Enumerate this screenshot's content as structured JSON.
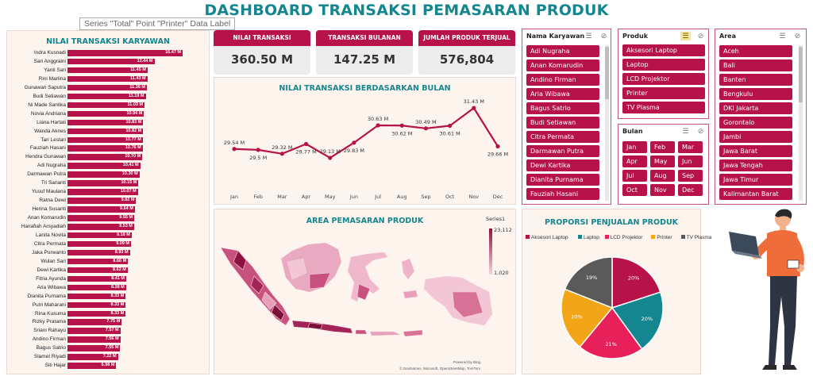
{
  "title": "DASHBOARD TRANSAKSI PEMASARAN PRODUK",
  "tooltip": "Series \"Total\" Point \"Printer\" Data Label",
  "employees_panel": {
    "title": "NILAI TRANSAKSI KARYAWAN",
    "rows": [
      {
        "name": "Indra Kusnadi",
        "value": 16.47,
        "label": "16.47 M"
      },
      {
        "name": "Sari Anggraini",
        "value": 12.44,
        "label": "12.44 M"
      },
      {
        "name": "Yanti Sari",
        "value": 11.45,
        "label": "11.45 M"
      },
      {
        "name": "Rini Marlina",
        "value": 11.43,
        "label": "11.43 M"
      },
      {
        "name": "Gunawan Saputra",
        "value": 11.36,
        "label": "11.36 M"
      },
      {
        "name": "Budi Setiawan",
        "value": 11.19,
        "label": "11.19 M"
      },
      {
        "name": "Ni Made Santika",
        "value": 11.03,
        "label": "11.03 M"
      },
      {
        "name": "Novia Andriana",
        "value": 10.94,
        "label": "10.94 M"
      },
      {
        "name": "Liana Hartati",
        "value": 10.83,
        "label": "10.83 M"
      },
      {
        "name": "Wanda Aknes",
        "value": 10.82,
        "label": "10.82 M"
      },
      {
        "name": "Tari Lestari",
        "value": 10.77,
        "label": "10.77 M"
      },
      {
        "name": "Fauziah Hasani",
        "value": 10.76,
        "label": "10.76 M"
      },
      {
        "name": "Hendra Gunawan",
        "value": 10.7,
        "label": "10.70 M"
      },
      {
        "name": "Adi Nugraha",
        "value": 10.41,
        "label": "10.41 M"
      },
      {
        "name": "Darmawan Putra",
        "value": 10.3,
        "label": "10.30 M"
      },
      {
        "name": "Tri Sarianti",
        "value": 10.15,
        "label": "10.15 M"
      },
      {
        "name": "Yusuf Maulana",
        "value": 10.07,
        "label": "10.07 M"
      },
      {
        "name": "Ratna Dewi",
        "value": 9.82,
        "label": "9.82 M"
      },
      {
        "name": "Herina Susanti",
        "value": 9.64,
        "label": "9.64 M"
      },
      {
        "name": "Anan Komarudin",
        "value": 9.55,
        "label": "9.55 M"
      },
      {
        "name": "Hanafiah Arsyadiah",
        "value": 9.53,
        "label": "9.53 M"
      },
      {
        "name": "Lanita Novita",
        "value": 9.18,
        "label": "9.18 M"
      },
      {
        "name": "Citra Permata",
        "value": 9.09,
        "label": "9.09 M"
      },
      {
        "name": "Jaka Purwanto",
        "value": 8.93,
        "label": "8.93 M"
      },
      {
        "name": "Wulan Sari",
        "value": 8.66,
        "label": "8.66 M"
      },
      {
        "name": "Dewi Kartika",
        "value": 8.62,
        "label": "8.62 M"
      },
      {
        "name": "Fitria Ayunda",
        "value": 8.41,
        "label": "8.41 M"
      },
      {
        "name": "Aria Wibawa",
        "value": 8.38,
        "label": "8.38 M"
      },
      {
        "name": "Dianita Purnama",
        "value": 8.33,
        "label": "8.33 M"
      },
      {
        "name": "Putri Maharani",
        "value": 8.33,
        "label": "8.33 M"
      },
      {
        "name": "Rina Kusuma",
        "value": 8.33,
        "label": "8.33 M"
      },
      {
        "name": "Rizky Pratama",
        "value": 7.75,
        "label": "7.75 M"
      },
      {
        "name": "Sriani Rahayu",
        "value": 7.57,
        "label": "7.57 M"
      },
      {
        "name": "Andino Firman",
        "value": 7.56,
        "label": "7.56 M"
      },
      {
        "name": "Bagus Satrio",
        "value": 7.55,
        "label": "7.55 M"
      },
      {
        "name": "Slamet Riyadi",
        "value": 7.22,
        "label": "7.22 M"
      },
      {
        "name": "Siti Hajar",
        "value": 6.98,
        "label": "6.98 M"
      }
    ]
  },
  "kpis": [
    {
      "label": "NILAI TRANSAKSI",
      "value": "360.50 M"
    },
    {
      "label": "TRANSAKSI  BULANAN",
      "value": "147.25 M"
    },
    {
      "label": "JUMLAH PRODUK TERJUAL",
      "value": "576,804"
    }
  ],
  "monthly_chart_title": "NILAI TRANSAKSI BERDASARKAN BULAN",
  "map": {
    "title": "AREA PEMASARAN PRODUK",
    "legend_title": "Series1",
    "legend_max": "23,112",
    "legend_min": "1,020",
    "powered_by": "Powered by Bing",
    "attribution": "© GeoNames, Microsoft, OpenStreetMap, TomTom"
  },
  "pie_title": "PROPORSI PENJUALAN PRODUK",
  "slicers": {
    "employees": {
      "title": "Nama Karyawan",
      "items": [
        "Adi Nugraha",
        "Anan Komarudin",
        "Andino Firman",
        "Aria Wibawa",
        "Bagus Satrio",
        "Budi Setiawan",
        "Citra Permata",
        "Darmawan Putra",
        "Dewi Kartika",
        "Dianita Purnama",
        "Fauziah Hasani"
      ]
    },
    "product": {
      "title": "Produk",
      "items": [
        "Aksesori Laptop",
        "Laptop",
        "LCD Projektor",
        "Printer",
        "TV Plasma"
      ]
    },
    "month": {
      "title": "Bulan",
      "items": [
        "Jan",
        "Feb",
        "Mar",
        "Apr",
        "May",
        "Jun",
        "Jul",
        "Aug",
        "Sep",
        "Oct",
        "Nov",
        "Dec"
      ]
    },
    "area": {
      "title": "Area",
      "items": [
        "Aceh",
        "Bali",
        "Banten",
        "Bengkulu",
        "DKI Jakarta",
        "Gorontalo",
        "Jambi",
        "Jawa Barat",
        "Jawa Tengah",
        "Jawa Timur",
        "Kalimantan Barat"
      ]
    }
  },
  "colors": {
    "accent": "#b8124a",
    "title": "#13868f",
    "panel_bg": "#fdf4ee"
  },
  "chart_data": [
    {
      "type": "line",
      "title": "NILAI TRANSAKSI BERDASARKAN BULAN",
      "categories": [
        "Jan",
        "Feb",
        "Mar",
        "Apr",
        "May",
        "Jun",
        "Jul",
        "Aug",
        "Sep",
        "Oct",
        "Nov",
        "Dec"
      ],
      "values": [
        29.54,
        29.5,
        29.32,
        29.77,
        29.13,
        29.83,
        30.63,
        30.62,
        30.49,
        30.61,
        31.43,
        29.66
      ],
      "labels": [
        "29.54 M",
        "29.5 M",
        "29.32 M",
        "29.77 M",
        "29.13 M",
        "29.83 M",
        "30.63 M",
        "30.62 M",
        "30.49 M",
        "30.61 M",
        "31.43 M",
        "29.66 M"
      ],
      "ylim": [
        28.8,
        31.8
      ],
      "color": "#b8124a",
      "grid": false
    },
    {
      "type": "pie",
      "title": "PROPORSI PENJUALAN PRODUK",
      "categories": [
        "Aksesori Laptop",
        "Laptop",
        "LCD Projektor",
        "Printer",
        "TV Plasma"
      ],
      "values": [
        20,
        20,
        21,
        20,
        19
      ],
      "labels": [
        "20%",
        "20%",
        "21%",
        "20%",
        "19%"
      ],
      "colors": [
        "#b8124a",
        "#13868f",
        "#e8205a",
        "#f2a516",
        "#5a5a5a"
      ],
      "legend": "top"
    },
    {
      "type": "bar",
      "orientation": "horizontal",
      "title": "NILAI TRANSAKSI KARYAWAN",
      "series_ref": "employees_panel.rows"
    }
  ]
}
